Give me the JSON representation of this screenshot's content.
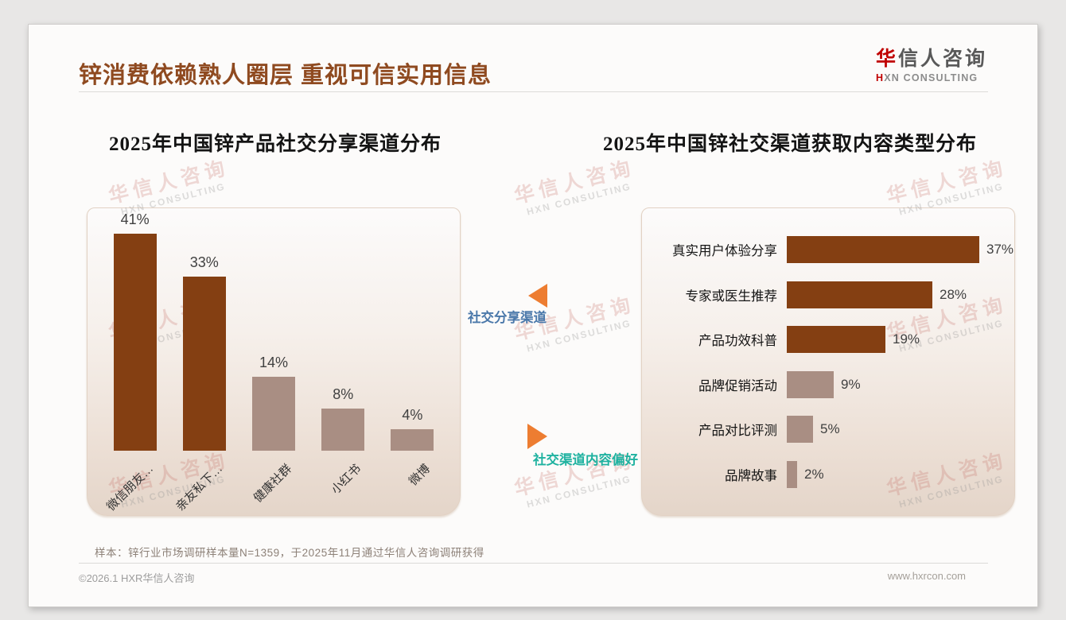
{
  "slide": {
    "title": "锌消费依赖熟人圈层 重视可信实用信息",
    "note": "样本：锌行业市场调研样本量N=1359，于2025年11月通过华信人咨询调研获得",
    "footer_left": "©2026.1 HXR华信人咨询",
    "footer_right": "www.hxrcon.com"
  },
  "logo": {
    "cn_accent": "华",
    "cn_rest": "信人咨询",
    "en_accent": "H",
    "en_rest": "XN CONSULTING"
  },
  "watermark": {
    "cn": "华信人咨询",
    "en": "HXN CONSULTING"
  },
  "middle_callouts": {
    "top": {
      "label": "社交分享渠道",
      "color": "#4A78AA",
      "arrow": "left",
      "arrow_color": "#ED7D31"
    },
    "bottom": {
      "label": "社交渠道内容偏好",
      "color": "#1FB2A0",
      "arrow": "right",
      "arrow_color": "#ED7D31"
    }
  },
  "colors": {
    "primary_bar": "#843F12",
    "secondary_bar": "#A98E83",
    "title_text": "#8F4A20"
  },
  "chart_data": [
    {
      "type": "bar",
      "orientation": "vertical",
      "title": "2025年中国锌产品社交分享渠道分布",
      "categories": [
        "微信朋友…",
        "亲友私下…",
        "健康社群",
        "小红书",
        "微博"
      ],
      "values": [
        41,
        33,
        14,
        8,
        4
      ],
      "unit": "%",
      "bar_colors": [
        "#843F12",
        "#843F12",
        "#A98E83",
        "#A98E83",
        "#A98E83"
      ],
      "ylim": [
        0,
        45
      ],
      "grid": false,
      "legend": false,
      "data_labels": true
    },
    {
      "type": "bar",
      "orientation": "horizontal",
      "title": "2025年中国锌社交渠道获取内容类型分布",
      "categories": [
        "真实用户体验分享",
        "专家或医生推荐",
        "产品功效科普",
        "品牌促销活动",
        "产品对比评测",
        "品牌故事"
      ],
      "values": [
        37,
        28,
        19,
        9,
        5,
        2
      ],
      "unit": "%",
      "bar_colors": [
        "#843F12",
        "#843F12",
        "#843F12",
        "#A98E83",
        "#A98E83",
        "#A98E83"
      ],
      "xlim": [
        0,
        40
      ],
      "grid": false,
      "legend": false,
      "data_labels": true
    }
  ]
}
